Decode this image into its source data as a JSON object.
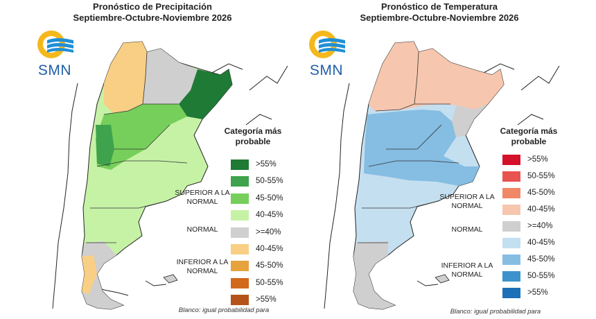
{
  "logo_text": "SMN",
  "maps": [
    {
      "title_line1": "Pronóstico de Precipitación",
      "title_line2": "Septiembre-Octubre-Noviembre 2026",
      "legend_title": "Categoría más probable",
      "groups": [
        "SUPERIOR A LA NORMAL",
        "NORMAL",
        "INFERIOR A LA NORMAL"
      ],
      "legend": [
        {
          "label": ">55%",
          "color": "#1e7a35"
        },
        {
          "label": "50-55%",
          "color": "#3fa34d"
        },
        {
          "label": "45-50%",
          "color": "#76cf5a"
        },
        {
          "label": "40-45%",
          "color": "#c6f2a6"
        },
        {
          "label": ">=40%",
          "color": "#cfcfcf"
        },
        {
          "label": "40-45%",
          "color": "#f8cf84"
        },
        {
          "label": "45-50%",
          "color": "#e5a23d"
        },
        {
          "label": "50-55%",
          "color": "#d1691c"
        },
        {
          "label": ">55%",
          "color": "#b5541a"
        }
      ],
      "note": "Blanco: igual probabilidad para"
    },
    {
      "title_line1": "Pronóstico de Temperatura",
      "title_line2": "Septiembre-Octubre-Noviembre 2026",
      "legend_title": "Categoría más probable",
      "groups": [
        "SUPERIOR A LA NORMAL",
        "NORMAL",
        "INFERIOR A LA NORMAL"
      ],
      "legend": [
        {
          "label": ">55%",
          "color": "#d4102a"
        },
        {
          "label": "50-55%",
          "color": "#e8534f"
        },
        {
          "label": "45-50%",
          "color": "#f08868"
        },
        {
          "label": "40-45%",
          "color": "#f6c6ae"
        },
        {
          "label": ">=40%",
          "color": "#cfcfcf"
        },
        {
          "label": "40-45%",
          "color": "#c4dff0"
        },
        {
          "label": "45-50%",
          "color": "#86bde2"
        },
        {
          "label": "50-55%",
          "color": "#3d92cc"
        },
        {
          "label": ">55%",
          "color": "#1b70b8"
        }
      ],
      "note": "Blanco: igual probabilidad para"
    }
  ]
}
